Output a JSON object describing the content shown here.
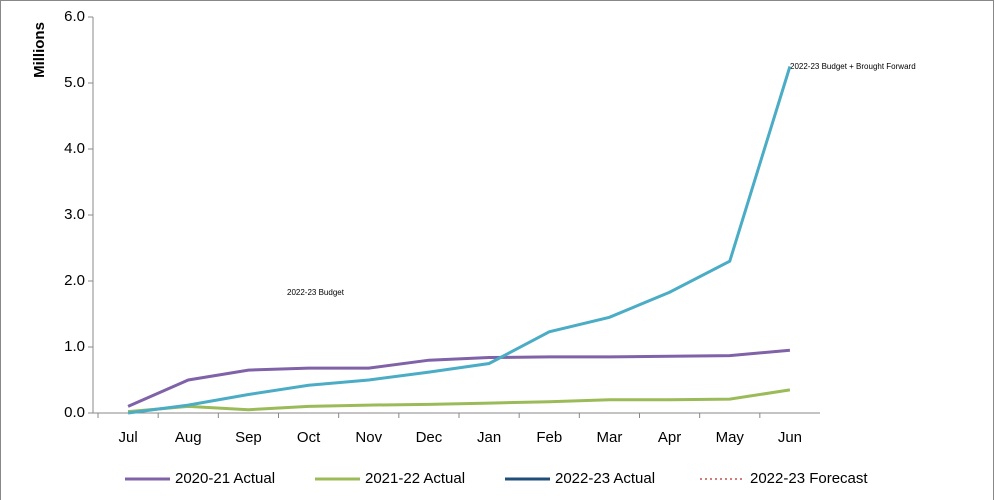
{
  "chart_data": {
    "type": "line",
    "y_label": "Millions",
    "categories": [
      "Jul",
      "Aug",
      "Sep",
      "Oct",
      "Nov",
      "Dec",
      "Jan",
      "Feb",
      "Mar",
      "Apr",
      "May",
      "Jun"
    ],
    "ylim": [
      0,
      6
    ],
    "yticks": [
      {
        "value": 0,
        "label": "0.0"
      },
      {
        "value": 1,
        "label": "1.0"
      },
      {
        "value": 2,
        "label": "2.0"
      },
      {
        "value": 3,
        "label": "3.0"
      },
      {
        "value": 4,
        "label": "4.0"
      },
      {
        "value": 5,
        "label": "5.0"
      },
      {
        "value": 6,
        "label": "6.0"
      }
    ],
    "series": [
      {
        "name": "2020-21 Actual",
        "color": "#7f62a8",
        "values": [
          0.1,
          0.5,
          0.65,
          0.68,
          0.68,
          0.8,
          0.84,
          0.85,
          0.85,
          0.86,
          0.87,
          0.95
        ]
      },
      {
        "name": "2021-22 Actual",
        "color": "#9bbb59",
        "values": [
          0.02,
          0.1,
          0.05,
          0.1,
          0.12,
          0.13,
          0.15,
          0.17,
          0.2,
          0.2,
          0.21,
          0.35
        ]
      },
      {
        "name": "2022-23 Actual",
        "color": "#1f4e79",
        "values": [
          null,
          null,
          null,
          null,
          null,
          null,
          null,
          null,
          null,
          null,
          null,
          null
        ]
      },
      {
        "name": "2022-23 Forecast",
        "color": "#c0504d",
        "dashed": true,
        "values": [
          null,
          null,
          null,
          null,
          null,
          null,
          null,
          null,
          null,
          null,
          null,
          null
        ]
      }
    ],
    "budget": {
      "color": "#4bacc6",
      "values": [
        0.0,
        0.12,
        0.28,
        0.42,
        0.5,
        0.62,
        0.75,
        1.23,
        1.45,
        1.83,
        2.3,
        5.25
      ],
      "annotations": [
        "2022-23 Budget",
        "2022-23 Budget + Brought Forward"
      ]
    },
    "legend": "bottom"
  }
}
